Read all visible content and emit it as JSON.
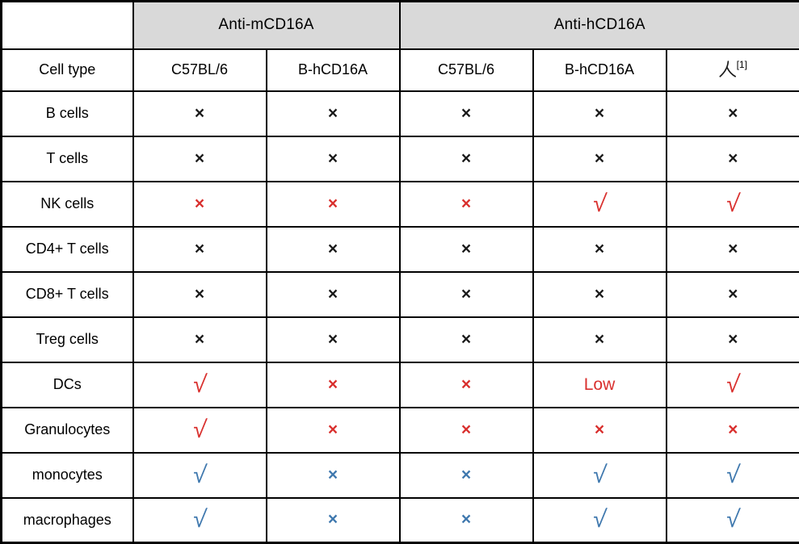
{
  "chart_data": {
    "type": "table",
    "title": "",
    "col_groups": [
      {
        "label": "Anti-mCD16A",
        "span": 2
      },
      {
        "label": "Anti-hCD16A",
        "span": 3
      }
    ],
    "columns": [
      "Cell type",
      "C57BL/6",
      "B-hCD16A",
      "C57BL/6",
      "B-hCD16A",
      "人[1]"
    ],
    "human_column": {
      "character": "人",
      "superscript": "[1]"
    },
    "rows": [
      {
        "label": "B cells",
        "cells": [
          {
            "v": "×",
            "c": "black"
          },
          {
            "v": "×",
            "c": "black"
          },
          {
            "v": "×",
            "c": "black"
          },
          {
            "v": "×",
            "c": "black"
          },
          {
            "v": "×",
            "c": "black"
          }
        ]
      },
      {
        "label": "T cells",
        "cells": [
          {
            "v": "×",
            "c": "black"
          },
          {
            "v": "×",
            "c": "black"
          },
          {
            "v": "×",
            "c": "black"
          },
          {
            "v": "×",
            "c": "black"
          },
          {
            "v": "×",
            "c": "black"
          }
        ]
      },
      {
        "label": "NK cells",
        "cells": [
          {
            "v": "×",
            "c": "red"
          },
          {
            "v": "×",
            "c": "red"
          },
          {
            "v": "×",
            "c": "red"
          },
          {
            "v": "√",
            "c": "red"
          },
          {
            "v": "√",
            "c": "red"
          }
        ]
      },
      {
        "label": "CD4+ T cells",
        "cells": [
          {
            "v": "×",
            "c": "black"
          },
          {
            "v": "×",
            "c": "black"
          },
          {
            "v": "×",
            "c": "black"
          },
          {
            "v": "×",
            "c": "black"
          },
          {
            "v": "×",
            "c": "black"
          }
        ]
      },
      {
        "label": "CD8+ T cells",
        "cells": [
          {
            "v": "×",
            "c": "black"
          },
          {
            "v": "×",
            "c": "black"
          },
          {
            "v": "×",
            "c": "black"
          },
          {
            "v": "×",
            "c": "black"
          },
          {
            "v": "×",
            "c": "black"
          }
        ]
      },
      {
        "label": "Treg cells",
        "cells": [
          {
            "v": "×",
            "c": "black"
          },
          {
            "v": "×",
            "c": "black"
          },
          {
            "v": "×",
            "c": "black"
          },
          {
            "v": "×",
            "c": "black"
          },
          {
            "v": "×",
            "c": "black"
          }
        ]
      },
      {
        "label": "DCs",
        "cells": [
          {
            "v": "√",
            "c": "red"
          },
          {
            "v": "×",
            "c": "red"
          },
          {
            "v": "×",
            "c": "red"
          },
          {
            "v": "Low",
            "c": "red"
          },
          {
            "v": "√",
            "c": "red"
          }
        ]
      },
      {
        "label": "Granulocytes",
        "cells": [
          {
            "v": "√",
            "c": "red"
          },
          {
            "v": "×",
            "c": "red"
          },
          {
            "v": "×",
            "c": "red"
          },
          {
            "v": "×",
            "c": "red"
          },
          {
            "v": "×",
            "c": "red"
          }
        ]
      },
      {
        "label": "monocytes",
        "cells": [
          {
            "v": "√",
            "c": "blue"
          },
          {
            "v": "×",
            "c": "blue"
          },
          {
            "v": "×",
            "c": "blue"
          },
          {
            "v": "√",
            "c": "blue"
          },
          {
            "v": "√",
            "c": "blue"
          }
        ]
      },
      {
        "label": "macrophages",
        "cells": [
          {
            "v": "√",
            "c": "blue"
          },
          {
            "v": "×",
            "c": "blue"
          },
          {
            "v": "×",
            "c": "blue"
          },
          {
            "v": "√",
            "c": "blue"
          },
          {
            "v": "√",
            "c": "blue"
          }
        ]
      }
    ],
    "layout": {
      "grid": "on",
      "header_background": "#d9d9d9"
    },
    "colors": {
      "black_symbol": "#1a1a1a",
      "red_symbol": "#d9302e",
      "blue_symbol": "#3f78ae",
      "border": "#000000",
      "header_bg": "#d9d9d9"
    }
  }
}
